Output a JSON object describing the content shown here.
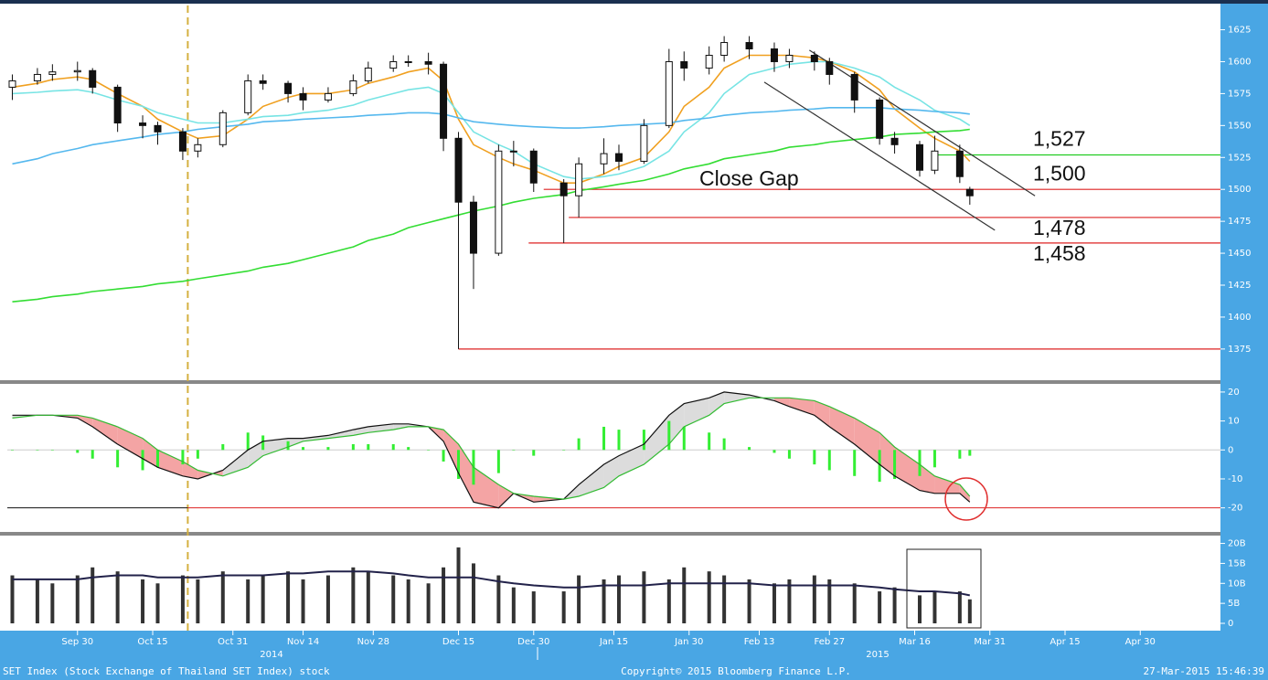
{
  "chart_data": [
    {
      "type": "candlestick",
      "x": [
        "2014-09-17",
        "2014-09-22",
        "2014-09-25",
        "2014-09-30",
        "2014-10-03",
        "2014-10-08",
        "2014-10-13",
        "2014-10-16",
        "2014-10-21",
        "2014-10-24",
        "2014-10-29",
        "2014-11-03",
        "2014-11-06",
        "2014-11-11",
        "2014-11-14",
        "2014-11-19",
        "2014-11-24",
        "2014-11-27",
        "2014-12-02",
        "2014-12-05",
        "2014-12-09",
        "2014-12-12",
        "2014-12-15",
        "2014-12-18",
        "2014-12-23",
        "2014-12-26",
        "2014-12-30",
        "2015-01-05",
        "2015-01-08",
        "2015-01-13",
        "2015-01-16",
        "2015-01-21",
        "2015-01-26",
        "2015-01-29",
        "2015-02-03",
        "2015-02-06",
        "2015-02-11",
        "2015-02-16",
        "2015-02-19",
        "2015-02-24",
        "2015-02-27",
        "2015-03-04",
        "2015-03-09",
        "2015-03-12",
        "2015-03-17",
        "2015-03-20",
        "2015-03-25",
        "2015-03-27"
      ],
      "open": [
        1580,
        1585,
        1590,
        1592,
        1593,
        1580,
        1552,
        1550,
        1545,
        1530,
        1535,
        1560,
        1585,
        1583,
        1575,
        1570,
        1575,
        1585,
        1595,
        1600,
        1600,
        1598,
        1540,
        1490,
        1450,
        1530,
        1530,
        1505,
        1495,
        1520,
        1528,
        1522,
        1550,
        1600,
        1595,
        1605,
        1615,
        1610,
        1600,
        1605,
        1600,
        1590,
        1570,
        1540,
        1535,
        1515,
        1530,
        1500
      ],
      "high": [
        1590,
        1595,
        1598,
        1600,
        1595,
        1582,
        1558,
        1553,
        1548,
        1540,
        1562,
        1590,
        1590,
        1585,
        1580,
        1580,
        1590,
        1600,
        1605,
        1605,
        1607,
        1600,
        1545,
        1495,
        1535,
        1538,
        1532,
        1508,
        1525,
        1540,
        1535,
        1555,
        1610,
        1608,
        1612,
        1620,
        1620,
        1615,
        1610,
        1608,
        1603,
        1592,
        1572,
        1545,
        1538,
        1542,
        1535,
        1502
      ],
      "low": [
        1570,
        1582,
        1585,
        1585,
        1575,
        1545,
        1540,
        1535,
        1523,
        1525,
        1533,
        1558,
        1578,
        1568,
        1562,
        1568,
        1573,
        1583,
        1592,
        1596,
        1590,
        1530,
        1375,
        1422,
        1448,
        1518,
        1498,
        1458,
        1478,
        1512,
        1515,
        1520,
        1548,
        1585,
        1590,
        1600,
        1602,
        1592,
        1595,
        1593,
        1582,
        1560,
        1535,
        1528,
        1510,
        1512,
        1505,
        1488
      ],
      "close": [
        1585,
        1590,
        1592,
        1593,
        1580,
        1552,
        1550,
        1545,
        1530,
        1535,
        1560,
        1585,
        1583,
        1575,
        1570,
        1575,
        1585,
        1595,
        1600,
        1600,
        1598,
        1540,
        1490,
        1450,
        1530,
        1530,
        1505,
        1495,
        1520,
        1528,
        1522,
        1550,
        1600,
        1595,
        1605,
        1615,
        1610,
        1600,
        1605,
        1600,
        1590,
        1570,
        1540,
        1535,
        1515,
        1530,
        1510,
        1495
      ],
      "series": [
        {
          "color": "#f0a020",
          "values": [
            1580,
            1583,
            1586,
            1588,
            1586,
            1575,
            1565,
            1555,
            1545,
            1540,
            1542,
            1555,
            1565,
            1572,
            1575,
            1575,
            1578,
            1583,
            1588,
            1592,
            1595,
            1585,
            1555,
            1535,
            1525,
            1520,
            1515,
            1505,
            1505,
            1512,
            1518,
            1525,
            1545,
            1565,
            1580,
            1595,
            1605,
            1605,
            1605,
            1603,
            1600,
            1592,
            1578,
            1563,
            1548,
            1540,
            1530,
            1522
          ]
        },
        {
          "color": "#77e4e4",
          "values": [
            1575,
            1576,
            1577,
            1578,
            1576,
            1570,
            1565,
            1560,
            1555,
            1552,
            1552,
            1555,
            1557,
            1558,
            1560,
            1562,
            1566,
            1570,
            1575,
            1578,
            1580,
            1575,
            1560,
            1545,
            1535,
            1530,
            1520,
            1510,
            1508,
            1510,
            1512,
            1518,
            1530,
            1545,
            1560,
            1575,
            1590,
            1595,
            1598,
            1600,
            1600,
            1595,
            1588,
            1580,
            1570,
            1562,
            1555,
            1550
          ]
        },
        {
          "color": "#55b8ee",
          "values": [
            1520,
            1524,
            1528,
            1532,
            1535,
            1538,
            1541,
            1543,
            1545,
            1547,
            1549,
            1551,
            1553,
            1554,
            1555,
            1556,
            1557,
            1558,
            1559,
            1560,
            1560,
            1559,
            1556,
            1553,
            1551,
            1550,
            1549,
            1548,
            1548,
            1549,
            1550,
            1551,
            1552,
            1554,
            1556,
            1558,
            1560,
            1561,
            1562,
            1563,
            1564,
            1564,
            1564,
            1563,
            1562,
            1561,
            1560,
            1559
          ]
        },
        {
          "color": "#33dd33",
          "values": [
            1412,
            1414,
            1416,
            1418,
            1420,
            1422,
            1424,
            1426,
            1428,
            1430,
            1433,
            1436,
            1439,
            1442,
            1445,
            1450,
            1455,
            1460,
            1465,
            1470,
            1474,
            1477,
            1480,
            1483,
            1487,
            1490,
            1493,
            1496,
            1499,
            1502,
            1504,
            1507,
            1512,
            1516,
            1520,
            1524,
            1527,
            1530,
            1533,
            1535,
            1537,
            1539,
            1541,
            1543,
            1544,
            1545,
            1546,
            1547
          ]
        }
      ],
      "levels": [
        {
          "value": 1527,
          "label": "1,527",
          "color": "#22cc22",
          "from": "2015-03-20"
        },
        {
          "value": 1500,
          "label": "1,500",
          "color": "#dd2222",
          "from": "2015-01-01"
        },
        {
          "value": 1478,
          "label": "1,478",
          "color": "#dd2222",
          "from": "2015-01-06"
        },
        {
          "value": 1458,
          "label": "1,458",
          "color": "#dd2222",
          "from": "2014-12-29"
        },
        {
          "value": 1375,
          "color": "#dd2222",
          "from": "2014-12-15"
        }
      ],
      "trendlines": [
        {
          "x": [
            "2015-02-14",
            "2015-04-01"
          ],
          "y": [
            1584,
            1468
          ]
        },
        {
          "x": [
            "2015-02-23",
            "2015-04-09"
          ],
          "y": [
            1609,
            1495
          ]
        }
      ],
      "annotation": "Close Gap",
      "vline": "2014-10-22",
      "xlim": [
        "2014-09-16",
        "2015-05-16"
      ],
      "xticks": [
        {
          "value": "2014-09-30",
          "label": "Sep 30"
        },
        {
          "value": "2014-10-15",
          "label": "Oct 15"
        },
        {
          "value": "2014-10-31",
          "label": "Oct 31"
        },
        {
          "value": "2014-11-14",
          "label": "Nov 14"
        },
        {
          "value": "2014-11-28",
          "label": "Nov 28"
        },
        {
          "value": "2014-12-15",
          "label": "Dec 15"
        },
        {
          "value": "2014-12-30",
          "label": "Dec 30"
        },
        {
          "value": "2015-01-15",
          "label": "Jan 15"
        },
        {
          "value": "2015-01-30",
          "label": "Jan 30"
        },
        {
          "value": "2015-02-13",
          "label": "Feb 13"
        },
        {
          "value": "2015-02-27",
          "label": "Feb 27"
        },
        {
          "value": "2015-03-16",
          "label": "Mar 16"
        },
        {
          "value": "2015-03-31",
          "label": "Mar 31"
        },
        {
          "value": "2015-04-15",
          "label": "Apr 15"
        },
        {
          "value": "2015-04-30",
          "label": "Apr 30"
        }
      ],
      "years": [
        "2014",
        "2015"
      ],
      "ylim": [
        1352,
        1644
      ],
      "yticks": [
        1375,
        1400,
        1425,
        1450,
        1475,
        1500,
        1525,
        1550,
        1575,
        1600,
        1625
      ]
    },
    {
      "type": "macd",
      "series": [
        {
          "color": "#111111",
          "values": [
            12,
            12,
            12,
            11,
            8,
            2,
            -3,
            -6,
            -9,
            -10,
            -7,
            0,
            3,
            4,
            4,
            5,
            7,
            8,
            9,
            9,
            8,
            3,
            -8,
            -18,
            -20,
            -15,
            -18,
            -17,
            -12,
            -5,
            -2,
            2,
            12,
            16,
            18,
            20,
            19,
            17,
            15,
            12,
            8,
            2,
            -5,
            -9,
            -14,
            -15,
            -15,
            -18
          ]
        },
        {
          "color": "#33bb33",
          "values": [
            11,
            12,
            12,
            12,
            11,
            8,
            4,
            0,
            -4,
            -7,
            -9,
            -6,
            -2,
            1,
            3,
            4,
            5,
            6,
            7,
            8,
            8,
            7,
            2,
            -6,
            -12,
            -15,
            -16,
            -17,
            -16,
            -13,
            -9,
            -5,
            2,
            8,
            12,
            16,
            18,
            18,
            18,
            17,
            15,
            11,
            6,
            1,
            -5,
            -9,
            -12,
            -16
          ]
        }
      ],
      "histogram": {
        "color": "#33ee33",
        "values": [
          0,
          0,
          0,
          -1,
          -3,
          -6,
          -7,
          -6,
          -5,
          -3,
          2,
          6,
          5,
          3,
          1,
          1,
          2,
          2,
          2,
          1,
          0,
          -4,
          -10,
          -12,
          -8,
          0,
          -2,
          0,
          4,
          8,
          7,
          7,
          10,
          8,
          6,
          4,
          1,
          -1,
          -3,
          -5,
          -7,
          -9,
          -11,
          -10,
          -9,
          -6,
          -3,
          -2
        ]
      },
      "hline": -20,
      "ylim": [
        -28,
        22.5
      ],
      "yticks": [
        -20,
        -10,
        0,
        10,
        20
      ]
    },
    {
      "type": "bar",
      "values": [
        12,
        11,
        10,
        12,
        14,
        13,
        11,
        10,
        12,
        11,
        13,
        11,
        12,
        13,
        11,
        12,
        14,
        13,
        12,
        11,
        10,
        14,
        19,
        15,
        12,
        9,
        8,
        8,
        12,
        11,
        12,
        13,
        11,
        14,
        13,
        12,
        11,
        10,
        11,
        12,
        11,
        10,
        8,
        9,
        7,
        8,
        8,
        6
      ],
      "color": "#333333",
      "series": [
        {
          "color": "#22224a",
          "values": [
            11,
            11,
            11,
            11,
            11.5,
            12,
            12,
            11.5,
            11.5,
            11.5,
            12,
            12,
            12,
            12.5,
            12.5,
            13,
            13,
            13,
            12.5,
            12,
            11.5,
            11.5,
            11.5,
            11.5,
            10.5,
            10,
            9.5,
            9,
            9,
            9.5,
            9.5,
            9.5,
            10,
            10,
            10,
            10,
            10,
            9.5,
            9.5,
            9.5,
            9.5,
            9.5,
            9,
            8.5,
            8,
            8,
            7.5,
            7
          ]
        }
      ],
      "ylim": [
        -1.6,
        21.5
      ],
      "yticks": [
        0,
        {
          "value": 5,
          "label": "5B"
        },
        {
          "value": 10,
          "label": "10B"
        },
        {
          "value": 15,
          "label": "15B"
        },
        {
          "value": 20,
          "label": "20B"
        }
      ]
    }
  ],
  "footer": {
    "left": "SET Index (Stock Exchange of Thailand SET Index) stock",
    "center": "Copyright© 2015 Bloomberg Finance L.P.",
    "right": "27-Mar-2015 15:46:39"
  }
}
